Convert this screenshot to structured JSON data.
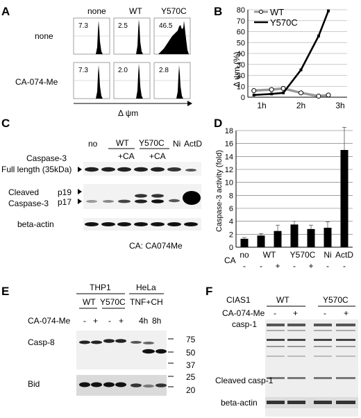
{
  "panels": {
    "A": {
      "letter": "A",
      "columns": [
        "none",
        "WT",
        "Y570C"
      ],
      "rows": [
        "none",
        "CA-074-Me"
      ],
      "values": [
        [
          "7.3",
          "2.5",
          "46.5"
        ],
        [
          "7.3",
          "2.0",
          "2.8"
        ]
      ],
      "xlabel": "Δ ψm"
    },
    "B": {
      "letter": "B",
      "ylabel": "Δ ψm (%)"
    },
    "C": {
      "letter": "C",
      "lanes": [
        "no",
        "WT",
        "Y570C",
        "Ni",
        "ActD"
      ],
      "treat": [
        "+CA",
        "+CA"
      ],
      "labels": {
        "caspase3": "Caspase-3",
        "full_length": "Full length (35kDa)",
        "cleaved": "Cleaved",
        "caspase3b": "Caspase-3",
        "p19": "p19",
        "p17": "p17",
        "beta_actin": "beta-actin",
        "footnote": "CA: CA074Me"
      }
    },
    "D": {
      "letter": "D",
      "ca_label": "CA",
      "ca_signs": [
        "-",
        "-",
        "+",
        "-",
        "+",
        "-",
        "-"
      ]
    },
    "E": {
      "letter": "E",
      "groups": [
        "THP1",
        "HeLa"
      ],
      "subgroups": [
        "WT",
        "Y570C",
        "TNF+CH"
      ],
      "treat_label": "CA-074-Me",
      "signs": [
        "-",
        "+",
        "-",
        "+"
      ],
      "times": [
        "4h",
        "8h"
      ],
      "rows": [
        "Casp-8",
        "Bid"
      ],
      "markers": [
        "75",
        "50",
        "37",
        "25",
        "20"
      ]
    },
    "F": {
      "letter": "F",
      "header": "CIAS1",
      "groups": [
        "WT",
        "Y570C"
      ],
      "treat_label": "CA-074-Me",
      "signs": [
        "-",
        "+",
        "-",
        "+"
      ],
      "rows": [
        "casp-1",
        "Cleaved casp-1",
        "beta-actin"
      ]
    }
  },
  "chart_data": [
    {
      "type": "line",
      "panel": "B",
      "x": [
        "1h",
        "2h",
        "3h"
      ],
      "ylabel": "Δ ψm (%)",
      "ylim": [
        0,
        80
      ],
      "yticks": [
        0,
        10,
        20,
        30,
        40,
        50,
        60,
        70,
        80
      ],
      "series": [
        {
          "name": "WT",
          "color": "#999999",
          "x": [
            0.8,
            1.25,
            1.55,
            2.0,
            2.45,
            2.7
          ],
          "values": [
            6,
            7,
            8,
            4,
            1,
            2
          ]
        },
        {
          "name": "Y570C",
          "color": "#000000",
          "x": [
            0.8,
            1.25,
            1.55,
            2.0,
            2.45,
            2.7
          ],
          "values": [
            2,
            3,
            4,
            25,
            56,
            79
          ]
        }
      ]
    },
    {
      "type": "bar",
      "panel": "D",
      "ylabel": "Caspase-3 activity (fold)",
      "ylim": [
        0,
        18
      ],
      "yticks": [
        0,
        2,
        4,
        6,
        8,
        10,
        12,
        14,
        16,
        18
      ],
      "groups": [
        "no",
        "WT",
        "Y570C",
        "Ni",
        "ActD"
      ],
      "values": [
        1.3,
        1.8,
        2.5,
        3.5,
        2.8,
        3.0,
        15.0
      ],
      "errors": [
        0.2,
        0.3,
        0.9,
        0.5,
        0.6,
        0.9,
        3.5
      ],
      "color": "#000000"
    }
  ]
}
